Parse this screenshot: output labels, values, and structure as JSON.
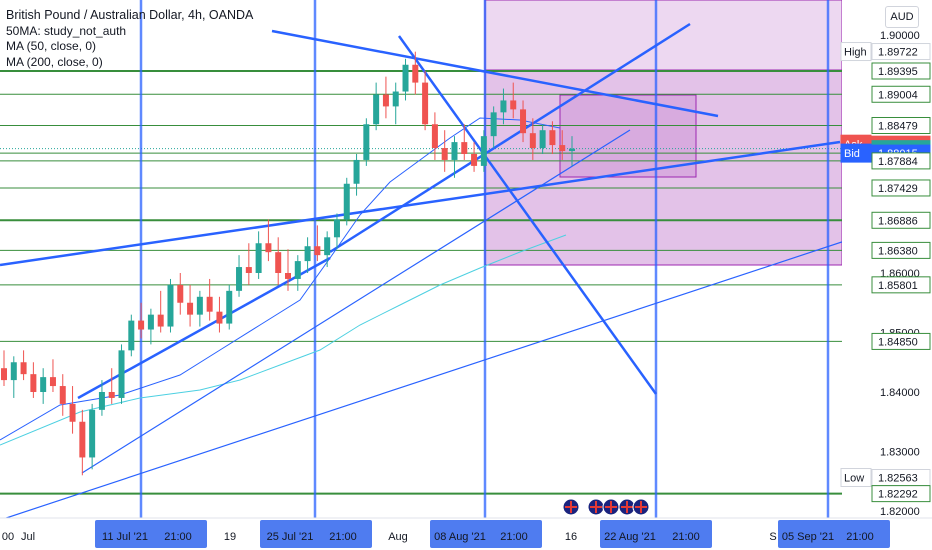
{
  "header": {
    "title": "British Pound / Australian Dollar, 4h, OANDA",
    "indicator1": "50MA: study_not_auth",
    "indicator2": "MA (50, close, 0)",
    "indicator3": "MA (200, close, 0)"
  },
  "currency_button": "AUD",
  "colors": {
    "candle_up": "#26a69a",
    "candle_down": "#ef5350",
    "trendline": "#2962ff",
    "hline": "#388e3c",
    "vline": "#2962ff",
    "zone": "#9c27b0",
    "ma50": "#2962ff",
    "ma200": "#4dd0e1"
  },
  "chart_data": {
    "type": "candlestick",
    "symbol": "British Pound / Australian Dollar",
    "timeframe": "4h",
    "y_ticks": [
      "1.90000",
      "1.86000",
      "1.85000",
      "1.84000",
      "1.83000",
      "1.82000"
    ],
    "x_ticks": [
      "00",
      "Jul",
      "11 Jul '21",
      "21:00",
      "19",
      "25 Jul '21",
      "21:00",
      "Aug",
      "08 Aug '21",
      "21:00",
      "16",
      "22 Aug '21",
      "21:00",
      "S",
      "05 Sep '21",
      "21:00"
    ],
    "price_labels": [
      {
        "text": "1.89722",
        "tag": "High",
        "kind": "high"
      },
      {
        "text": "1.89395",
        "tag": "",
        "kind": "level"
      },
      {
        "text": "1.89004",
        "tag": "",
        "kind": "level"
      },
      {
        "text": "1.88479",
        "tag": "",
        "kind": "level"
      },
      {
        "text": "1.88165",
        "tag": "Ask",
        "kind": "ask"
      },
      {
        "text": "1.88090",
        "tag": "",
        "kind": "last"
      },
      {
        "text": "1.88015",
        "tag": "Bid",
        "kind": "bid"
      },
      {
        "text": "1.87884",
        "tag": "",
        "kind": "level"
      },
      {
        "text": "1.87429",
        "tag": "",
        "kind": "level"
      },
      {
        "text": "1.86886",
        "tag": "",
        "kind": "level"
      },
      {
        "text": "1.86380",
        "tag": "",
        "kind": "level"
      },
      {
        "text": "1.85801",
        "tag": "",
        "kind": "level"
      },
      {
        "text": "1.84850",
        "tag": "",
        "kind": "level"
      },
      {
        "text": "1.82563",
        "tag": "Low",
        "kind": "low"
      },
      {
        "text": "1.82292",
        "tag": "",
        "kind": "level"
      }
    ],
    "horizontal_levels": [
      1.89395,
      1.89004,
      1.88479,
      1.88015,
      1.87884,
      1.87429,
      1.86886,
      1.8638,
      1.85801,
      1.8485,
      1.82292
    ],
    "vertical_lines_dates": [
      "11 Jul '21 21:00",
      "25 Jul '21 21:00",
      "08 Aug '21 21:00",
      "22 Aug '21 21:00",
      "05 Sep '21 21:00"
    ],
    "candles": [
      {
        "o": 1.844,
        "h": 1.847,
        "l": 1.841,
        "c": 1.842
      },
      {
        "o": 1.842,
        "h": 1.846,
        "l": 1.839,
        "c": 1.845
      },
      {
        "o": 1.845,
        "h": 1.847,
        "l": 1.842,
        "c": 1.843
      },
      {
        "o": 1.843,
        "h": 1.845,
        "l": 1.839,
        "c": 1.84
      },
      {
        "o": 1.84,
        "h": 1.844,
        "l": 1.838,
        "c": 1.8425
      },
      {
        "o": 1.8425,
        "h": 1.8455,
        "l": 1.84,
        "c": 1.841
      },
      {
        "o": 1.841,
        "h": 1.843,
        "l": 1.836,
        "c": 1.838
      },
      {
        "o": 1.838,
        "h": 1.841,
        "l": 1.833,
        "c": 1.835
      },
      {
        "o": 1.835,
        "h": 1.837,
        "l": 1.826,
        "c": 1.829
      },
      {
        "o": 1.829,
        "h": 1.838,
        "l": 1.827,
        "c": 1.837
      },
      {
        "o": 1.837,
        "h": 1.842,
        "l": 1.836,
        "c": 1.84
      },
      {
        "o": 1.84,
        "h": 1.844,
        "l": 1.838,
        "c": 1.839
      },
      {
        "o": 1.839,
        "h": 1.848,
        "l": 1.838,
        "c": 1.847
      },
      {
        "o": 1.847,
        "h": 1.853,
        "l": 1.846,
        "c": 1.852
      },
      {
        "o": 1.852,
        "h": 1.855,
        "l": 1.849,
        "c": 1.8505
      },
      {
        "o": 1.8505,
        "h": 1.854,
        "l": 1.848,
        "c": 1.853
      },
      {
        "o": 1.853,
        "h": 1.857,
        "l": 1.85,
        "c": 1.851
      },
      {
        "o": 1.851,
        "h": 1.859,
        "l": 1.85,
        "c": 1.858
      },
      {
        "o": 1.858,
        "h": 1.86,
        "l": 1.853,
        "c": 1.855
      },
      {
        "o": 1.855,
        "h": 1.858,
        "l": 1.851,
        "c": 1.853
      },
      {
        "o": 1.853,
        "h": 1.857,
        "l": 1.851,
        "c": 1.856
      },
      {
        "o": 1.856,
        "h": 1.859,
        "l": 1.852,
        "c": 1.8535
      },
      {
        "o": 1.8535,
        "h": 1.856,
        "l": 1.85,
        "c": 1.8515
      },
      {
        "o": 1.8515,
        "h": 1.858,
        "l": 1.8505,
        "c": 1.857
      },
      {
        "o": 1.857,
        "h": 1.863,
        "l": 1.856,
        "c": 1.861
      },
      {
        "o": 1.861,
        "h": 1.865,
        "l": 1.858,
        "c": 1.86
      },
      {
        "o": 1.86,
        "h": 1.867,
        "l": 1.859,
        "c": 1.865
      },
      {
        "o": 1.865,
        "h": 1.869,
        "l": 1.862,
        "c": 1.8635
      },
      {
        "o": 1.8635,
        "h": 1.866,
        "l": 1.858,
        "c": 1.86
      },
      {
        "o": 1.86,
        "h": 1.864,
        "l": 1.857,
        "c": 1.859
      },
      {
        "o": 1.859,
        "h": 1.863,
        "l": 1.857,
        "c": 1.862
      },
      {
        "o": 1.862,
        "h": 1.866,
        "l": 1.86,
        "c": 1.8645
      },
      {
        "o": 1.8645,
        "h": 1.868,
        "l": 1.862,
        "c": 1.863
      },
      {
        "o": 1.863,
        "h": 1.867,
        "l": 1.861,
        "c": 1.866
      },
      {
        "o": 1.866,
        "h": 1.87,
        "l": 1.864,
        "c": 1.869
      },
      {
        "o": 1.869,
        "h": 1.876,
        "l": 1.868,
        "c": 1.875
      },
      {
        "o": 1.875,
        "h": 1.88,
        "l": 1.873,
        "c": 1.879
      },
      {
        "o": 1.879,
        "h": 1.886,
        "l": 1.878,
        "c": 1.885
      },
      {
        "o": 1.885,
        "h": 1.892,
        "l": 1.884,
        "c": 1.89
      },
      {
        "o": 1.89,
        "h": 1.893,
        "l": 1.886,
        "c": 1.888
      },
      {
        "o": 1.888,
        "h": 1.892,
        "l": 1.885,
        "c": 1.8905
      },
      {
        "o": 1.8905,
        "h": 1.896,
        "l": 1.889,
        "c": 1.895
      },
      {
        "o": 1.895,
        "h": 1.8972,
        "l": 1.89,
        "c": 1.892
      },
      {
        "o": 1.892,
        "h": 1.894,
        "l": 1.884,
        "c": 1.885
      },
      {
        "o": 1.885,
        "h": 1.887,
        "l": 1.879,
        "c": 1.881
      },
      {
        "o": 1.881,
        "h": 1.884,
        "l": 1.877,
        "c": 1.879
      },
      {
        "o": 1.879,
        "h": 1.883,
        "l": 1.876,
        "c": 1.882
      },
      {
        "o": 1.882,
        "h": 1.885,
        "l": 1.879,
        "c": 1.88
      },
      {
        "o": 1.88,
        "h": 1.882,
        "l": 1.877,
        "c": 1.878
      },
      {
        "o": 1.878,
        "h": 1.884,
        "l": 1.877,
        "c": 1.883
      },
      {
        "o": 1.883,
        "h": 1.888,
        "l": 1.881,
        "c": 1.887
      },
      {
        "o": 1.887,
        "h": 1.891,
        "l": 1.885,
        "c": 1.889
      },
      {
        "o": 1.889,
        "h": 1.892,
        "l": 1.886,
        "c": 1.8875
      },
      {
        "o": 1.8875,
        "h": 1.889,
        "l": 1.882,
        "c": 1.8835
      },
      {
        "o": 1.8835,
        "h": 1.886,
        "l": 1.879,
        "c": 1.881
      },
      {
        "o": 1.881,
        "h": 1.885,
        "l": 1.88,
        "c": 1.884
      },
      {
        "o": 1.884,
        "h": 1.8855,
        "l": 1.88,
        "c": 1.8815
      },
      {
        "o": 1.8815,
        "h": 1.884,
        "l": 1.879,
        "c": 1.8805
      },
      {
        "o": 1.8805,
        "h": 1.883,
        "l": 1.878,
        "c": 1.8809
      }
    ]
  }
}
